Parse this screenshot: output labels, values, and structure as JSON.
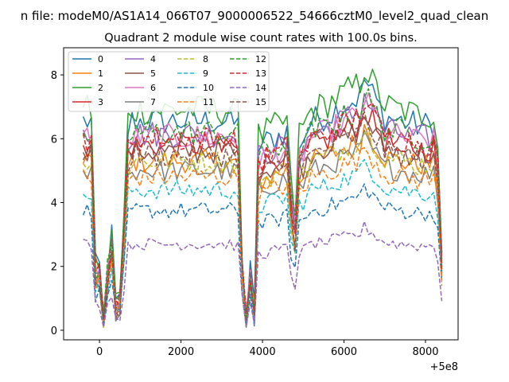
{
  "figure": {
    "suptitle": "n file: modeM0/AS1A14_066T07_9000006522_54666cztM0_level2_quad_clean",
    "title": "Quadrant 2 module wise count rates with 100.0s bins."
  },
  "chart_data": {
    "type": "line",
    "title": "Quadrant 2 module wise count rates with 100.0s bins.",
    "xlabel": "",
    "ylabel": "",
    "x_offset_label": "+5e8",
    "xlim": [
      -880,
      8800
    ],
    "ylim": [
      -0.3,
      8.85
    ],
    "xticks": [
      0,
      2000,
      4000,
      6000,
      8000
    ],
    "xtick_labels": [
      "0",
      "2000",
      "4000",
      "6000",
      "8000"
    ],
    "yticks": [
      0,
      2,
      4,
      6,
      8
    ],
    "ytick_labels": [
      "0",
      "2",
      "4",
      "6",
      "8"
    ],
    "grid": false,
    "legend_position": "top-left",
    "legend_columns": 4,
    "x_start": -400,
    "x_step": 100,
    "knots": [
      -400,
      -200,
      -100,
      0,
      100,
      200,
      300,
      400,
      500,
      600,
      700,
      800,
      3200,
      3400,
      3500,
      3600,
      3700,
      3800,
      3900,
      4600,
      4700,
      4800,
      4900,
      5000,
      5200,
      5500,
      6400,
      6500,
      7000,
      7800,
      8200,
      8300,
      8400
    ],
    "shape": [
      1.0,
      1.0,
      0.3,
      0.3,
      0.04,
      0.3,
      0.45,
      0.12,
      0.13,
      0.5,
      0.96,
      1.0,
      1.0,
      0.98,
      0.35,
      0.03,
      0.28,
      0.1,
      0.88,
      0.95,
      0.65,
      0.52,
      0.9,
      0.92,
      1.0,
      1.02,
      1.12,
      1.2,
      1.02,
      0.98,
      0.98,
      0.85,
      0.35
    ],
    "series": [
      {
        "name": "0",
        "level": 6.55,
        "color": "#1f77b4",
        "dash": "solid"
      },
      {
        "name": "1",
        "level": 5.3,
        "color": "#ff7f0e",
        "dash": "solid"
      },
      {
        "name": "2",
        "level": 6.9,
        "color": "#2ca02c",
        "dash": "solid"
      },
      {
        "name": "3",
        "level": 5.8,
        "color": "#d62728",
        "dash": "solid"
      },
      {
        "name": "4",
        "level": 6.15,
        "color": "#9467bd",
        "dash": "solid"
      },
      {
        "name": "5",
        "level": 5.6,
        "color": "#8c564b",
        "dash": "solid"
      },
      {
        "name": "6",
        "level": 6.05,
        "color": "#e377c2",
        "dash": "solid"
      },
      {
        "name": "7",
        "level": 5.0,
        "color": "#7f7f7f",
        "dash": "solid"
      },
      {
        "name": "8",
        "level": 5.3,
        "color": "#bcbd22",
        "dash": "dashed"
      },
      {
        "name": "9",
        "level": 4.4,
        "color": "#17becf",
        "dash": "dashed"
      },
      {
        "name": "10",
        "level": 3.75,
        "color": "#1f77b4",
        "dash": "dashed"
      },
      {
        "name": "11",
        "level": 4.8,
        "color": "#ff7f0e",
        "dash": "dashed"
      },
      {
        "name": "12",
        "level": 6.2,
        "color": "#2ca02c",
        "dash": "dashed"
      },
      {
        "name": "13",
        "level": 6.0,
        "color": "#d62728",
        "dash": "dashed"
      },
      {
        "name": "14",
        "level": 2.7,
        "color": "#9467bd",
        "dash": "dashed"
      },
      {
        "name": "15",
        "level": 5.5,
        "color": "#8c564b",
        "dash": "dashed"
      }
    ]
  }
}
